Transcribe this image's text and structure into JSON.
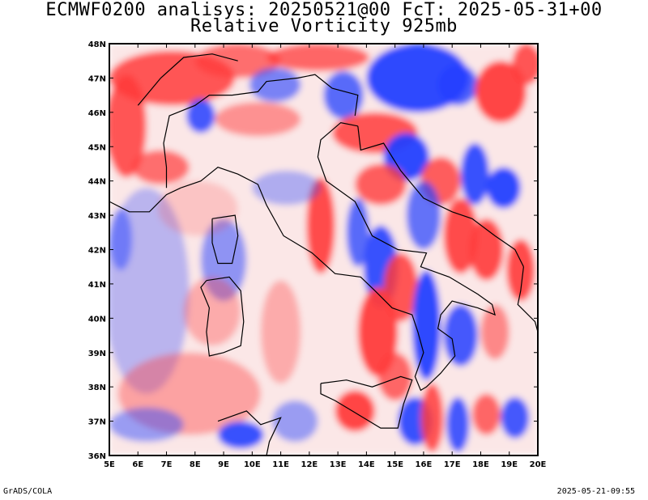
{
  "header": {
    "title_line1": "ECMWF0200 analisys: 20250521@00 FcT: 2025-05-31+00",
    "title_line2": "Relative Vorticity 925mb"
  },
  "footer": {
    "left": "GrADS/COLA",
    "right": "2025-05-21-09:55"
  },
  "map": {
    "lon_range": [
      5,
      20
    ],
    "lat_range": [
      36,
      48
    ],
    "x_ticks": [
      "5E",
      "6E",
      "7E",
      "8E",
      "9E",
      "10E",
      "11E",
      "12E",
      "13E",
      "14E",
      "15E",
      "16E",
      "17E",
      "18E",
      "19E",
      "20E"
    ],
    "y_ticks": [
      "36N",
      "37N",
      "38N",
      "39N",
      "40N",
      "41N",
      "42N",
      "43N",
      "44N",
      "45N",
      "46N",
      "47N",
      "48N"
    ],
    "colors": {
      "positive": "#ff3b3b",
      "negative": "#2340ff",
      "background": "#ffffff",
      "coast": "#000000"
    }
  }
}
